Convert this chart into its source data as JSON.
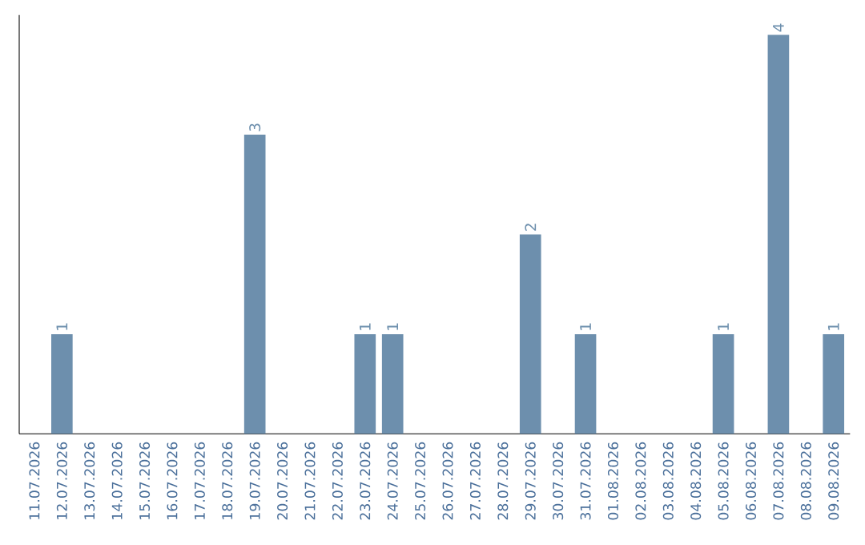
{
  "chart_data": {
    "type": "bar",
    "categories": [
      "11.07.2026",
      "12.07.2026",
      "13.07.2026",
      "14.07.2026",
      "15.07.2026",
      "16.07.2026",
      "17.07.2026",
      "18.07.2026",
      "19.07.2026",
      "20.07.2026",
      "21.07.2026",
      "22.07.2026",
      "23.07.2026",
      "24.07.2026",
      "25.07.2026",
      "26.07.2026",
      "27.07.2026",
      "28.07.2026",
      "29.07.2026",
      "30.07.2026",
      "31.07.2026",
      "01.08.2026",
      "02.08.2026",
      "03.08.2026",
      "04.08.2026",
      "05.08.2026",
      "06.08.2026",
      "07.08.2026",
      "08.08.2026",
      "09.08.2026"
    ],
    "values": [
      0,
      1,
      0,
      0,
      0,
      0,
      0,
      0,
      3,
      0,
      0,
      0,
      1,
      1,
      0,
      0,
      0,
      0,
      2,
      0,
      1,
      0,
      0,
      0,
      0,
      1,
      0,
      4,
      0,
      1
    ],
    "value_labels": [
      null,
      "1",
      null,
      null,
      null,
      null,
      null,
      null,
      "3",
      null,
      null,
      null,
      "1",
      "1",
      null,
      null,
      null,
      null,
      "2",
      null,
      "1",
      null,
      null,
      null,
      null,
      "1",
      null,
      "4",
      null,
      "1"
    ],
    "color": "#6d8fad",
    "ylim": [
      0,
      4.2
    ],
    "tick_labels": "x"
  }
}
